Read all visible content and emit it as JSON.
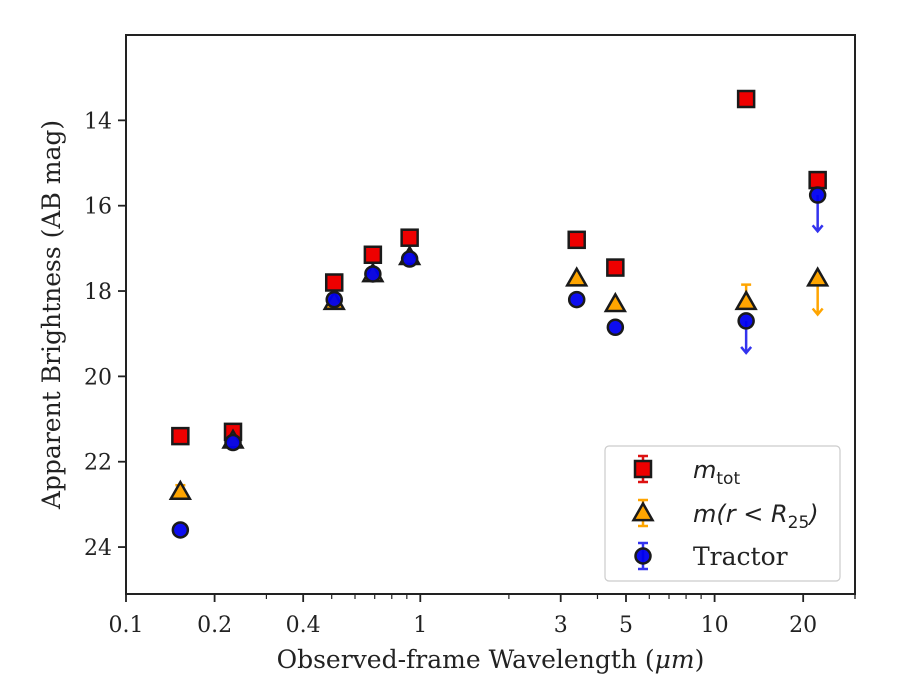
{
  "chart_data": {
    "type": "scatter",
    "title": "",
    "xlabel_main": "Observed-frame Wavelength (",
    "xlabel_unit": "μm",
    "xlabel_close": ")",
    "ylabel": "Apparent Brightness (AB mag)",
    "xscale": "log",
    "yscale": "linear",
    "y_inverted": true,
    "xlim": [
      0.1,
      30
    ],
    "ylim": [
      25.1,
      12.0
    ],
    "xticks": [
      0.1,
      0.2,
      0.4,
      1,
      3,
      5,
      10,
      20
    ],
    "xtick_labels": [
      "0.1",
      "0.2",
      "0.4",
      "1",
      "3",
      "5",
      "10",
      "20"
    ],
    "yticks": [
      14,
      16,
      18,
      20,
      22,
      24
    ],
    "ytick_labels": [
      "14",
      "16",
      "18",
      "20",
      "22",
      "24"
    ],
    "legend_position": "lower-right",
    "grid": false,
    "series": [
      {
        "key": "mtot",
        "legend_main": "m",
        "legend_sub": "tot",
        "legend_rest": "",
        "marker": "square",
        "face_color": "#ee0000",
        "edge_color": "#1a1a1a",
        "errbar_color": "#dd1111",
        "points": [
          {
            "x": 0.153,
            "y": 21.4
          },
          {
            "x": 0.231,
            "y": 21.3
          },
          {
            "x": 0.51,
            "y": 17.8
          },
          {
            "x": 0.69,
            "y": 17.15
          },
          {
            "x": 0.92,
            "y": 16.75
          },
          {
            "x": 3.4,
            "y": 16.8
          },
          {
            "x": 4.6,
            "y": 17.45
          },
          {
            "x": 12.8,
            "y": 13.5
          },
          {
            "x": 22.4,
            "y": 15.4
          }
        ]
      },
      {
        "key": "mr25",
        "legend_main": "m",
        "legend_sub": "",
        "legend_rest": "(r < R",
        "legend_rest_sub": "25",
        "legend_rest_close": ")",
        "marker": "triangle",
        "face_color": "#ffa500",
        "edge_color": "#1a1a1a",
        "errbar_color": "#ffa500",
        "points": [
          {
            "x": 0.153,
            "y": 22.7,
            "err_low": 0.15
          },
          {
            "x": 0.231,
            "y": 21.5
          },
          {
            "x": 0.51,
            "y": 18.25
          },
          {
            "x": 0.69,
            "y": 17.6
          },
          {
            "x": 0.92,
            "y": 17.2
          },
          {
            "x": 3.4,
            "y": 17.7
          },
          {
            "x": 4.6,
            "y": 18.3
          },
          {
            "x": 12.8,
            "y": 18.25,
            "err_low": 0.4
          },
          {
            "x": 22.4,
            "y": 17.7,
            "upper_limit_arrow": 0.85
          }
        ]
      },
      {
        "key": "tractor",
        "legend_main": "Tractor",
        "marker": "circle",
        "face_color": "#0000ee",
        "edge_color": "#1a1a1a",
        "errbar_color": "#3333ee",
        "points": [
          {
            "x": 0.153,
            "y": 23.6
          },
          {
            "x": 0.231,
            "y": 21.55
          },
          {
            "x": 0.51,
            "y": 18.2
          },
          {
            "x": 0.69,
            "y": 17.6
          },
          {
            "x": 0.92,
            "y": 17.25
          },
          {
            "x": 3.4,
            "y": 18.2
          },
          {
            "x": 4.6,
            "y": 18.85
          },
          {
            "x": 12.8,
            "y": 18.7,
            "upper_limit_arrow": 0.75
          },
          {
            "x": 22.4,
            "y": 15.75,
            "upper_limit_arrow": 0.85
          }
        ]
      }
    ]
  }
}
